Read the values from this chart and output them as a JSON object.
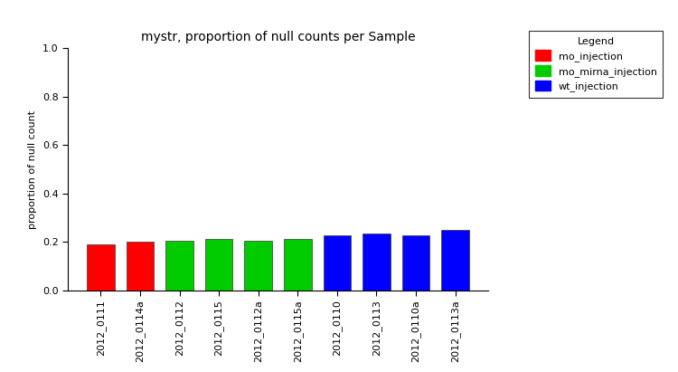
{
  "title": "mystr, proportion of null counts per Sample",
  "ylabel": "proportion of null count",
  "categories": [
    "2012_0111",
    "2012_0114a",
    "2012_0112",
    "2012_0115",
    "2012_0112a",
    "2012_0115a",
    "2012_0110",
    "2012_0113",
    "2012_0110a",
    "2012_0113a"
  ],
  "values": [
    0.19,
    0.202,
    0.203,
    0.212,
    0.205,
    0.21,
    0.228,
    0.235,
    0.228,
    0.248
  ],
  "bar_colors": [
    "#ff0000",
    "#ff0000",
    "#00cc00",
    "#00cc00",
    "#00cc00",
    "#00cc00",
    "#0000ff",
    "#0000ff",
    "#0000ff",
    "#0000ff"
  ],
  "ylim": [
    0.0,
    1.0
  ],
  "yticks": [
    0.0,
    0.2,
    0.4,
    0.6,
    0.8,
    1.0
  ],
  "legend_labels": [
    "mo_injection",
    "mo_mirna_injection",
    "wt_injection"
  ],
  "legend_colors": [
    "#ff0000",
    "#00cc00",
    "#0000ff"
  ],
  "legend_title": "Legend",
  "background_color": "#ffffff",
  "title_fontsize": 10,
  "axis_fontsize": 8,
  "tick_fontsize": 8
}
